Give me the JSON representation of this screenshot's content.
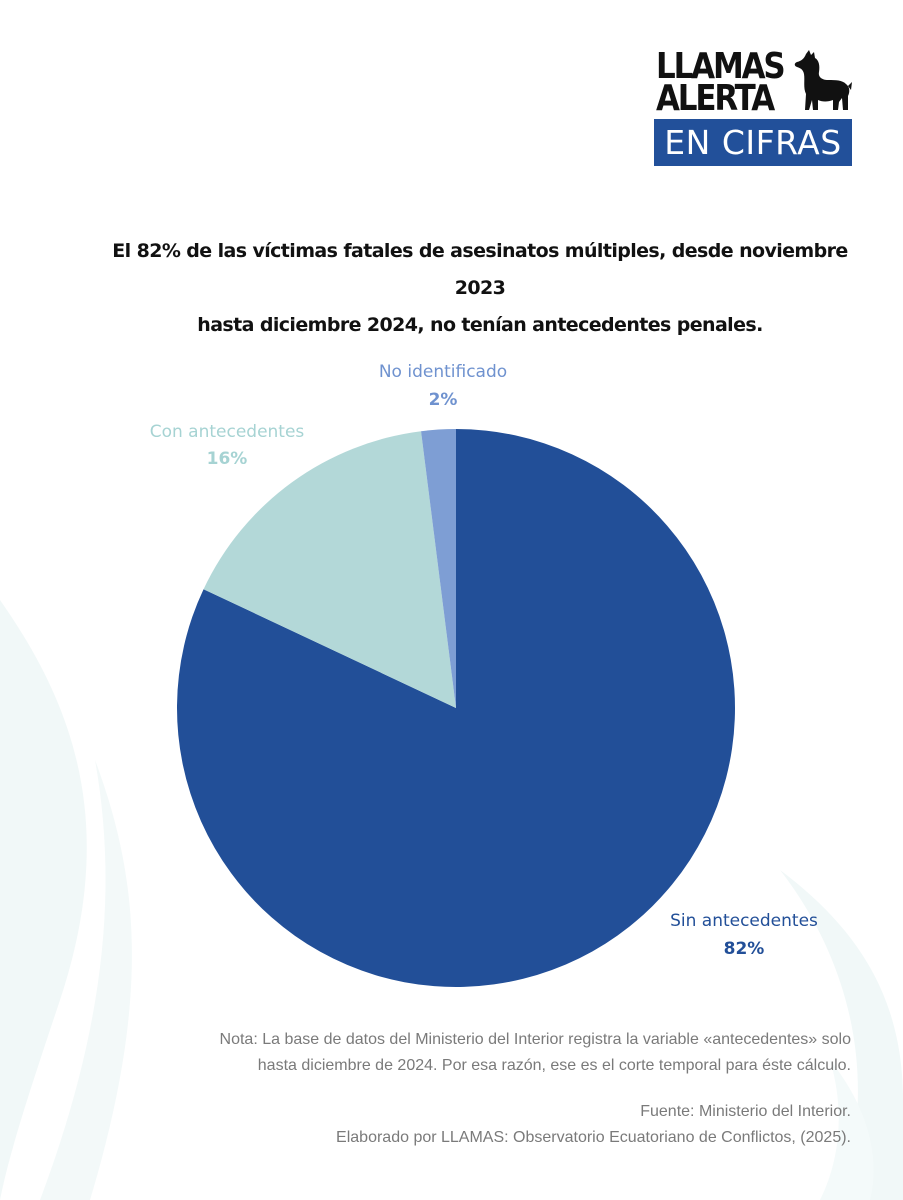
{
  "brand": {
    "line1": "LLAMAS",
    "line2": "ALERTA",
    "banner": "EN CIFRAS",
    "accent": "#22509a"
  },
  "headline": {
    "line1": "El 82% de las víctimas fatales de asesinatos múltiples, desde noviembre 2023",
    "line2": "hasta diciembre 2024, no tenían antecedentes penales."
  },
  "chart_data": {
    "type": "pie",
    "title": "El 82% de las víctimas fatales de asesinatos múltiples, desde noviembre 2023 hasta diciembre 2024, no tenían antecedentes penales.",
    "slices": [
      {
        "label": "Sin antecedentes",
        "value": 82,
        "value_label": "82%",
        "color": "#224f98",
        "label_color": "#224f98"
      },
      {
        "label": "Con antecedentes",
        "value": 16,
        "value_label": "16%",
        "color": "#b3d8d8",
        "label_color": "#a6d3d3"
      },
      {
        "label": "No identificado",
        "value": 2,
        "value_label": "2%",
        "color": "#7e9ed4",
        "label_color": "#6f92cf"
      }
    ],
    "start": "12 o'clock",
    "direction": "clockwise"
  },
  "footer": {
    "note_line1": "Nota: La base de datos del Ministerio del Interior registra la variable «antecedentes» solo",
    "note_line2": "hasta diciembre de 2024. Por esa razón, ese es el corte temporal para éste cálculo.",
    "source_line1": "Fuente: Ministerio del Interior.",
    "source_line2": "Elaborado por LLAMAS: Observatorio Ecuatoriano de Conflictos, (2025)."
  }
}
